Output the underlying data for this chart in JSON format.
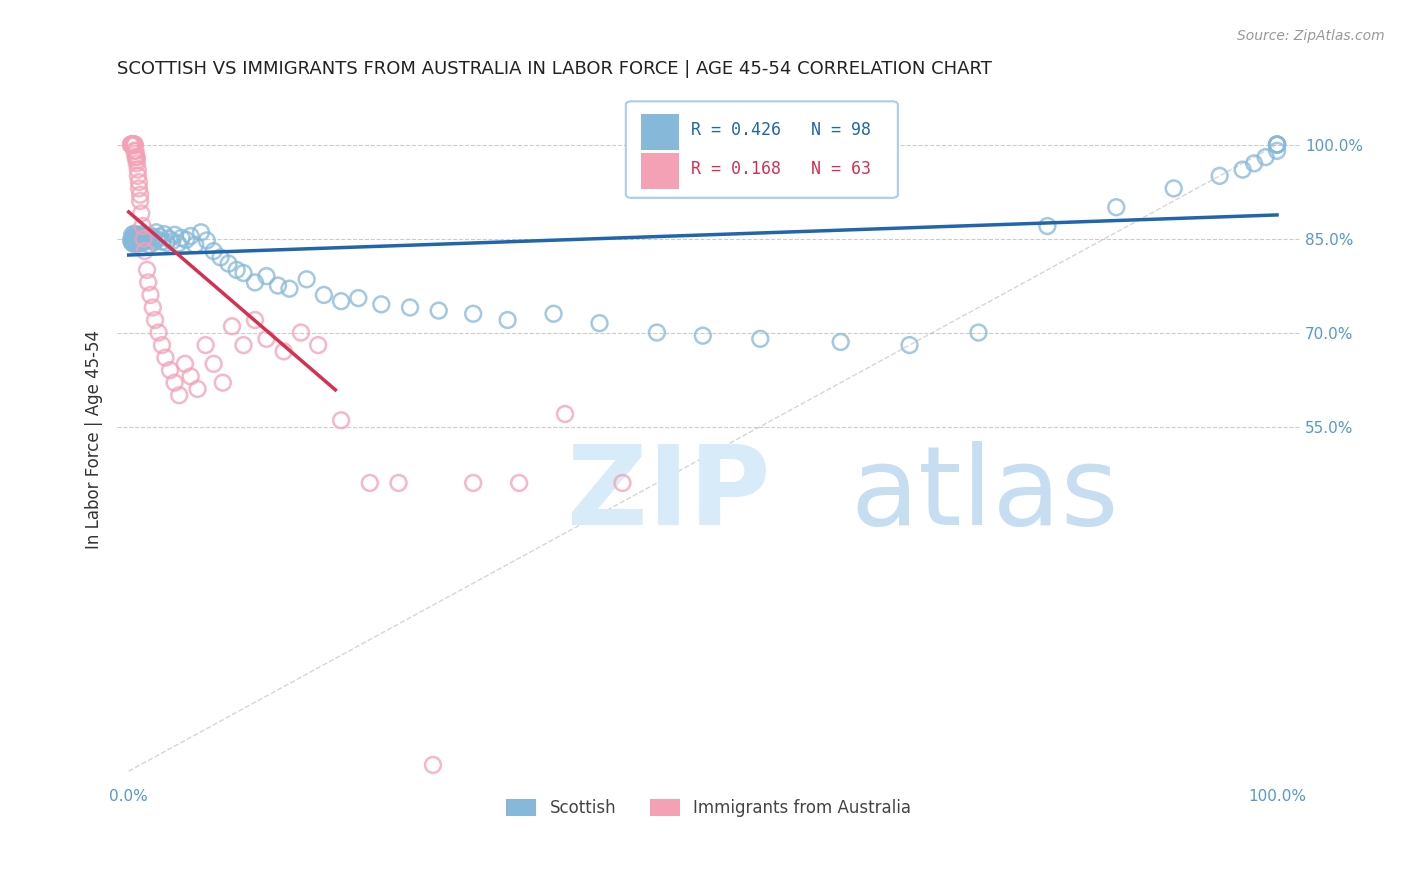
{
  "title": "SCOTTISH VS IMMIGRANTS FROM AUSTRALIA IN LABOR FORCE | AGE 45-54 CORRELATION CHART",
  "source": "Source: ZipAtlas.com",
  "ylabel": "In Labor Force | Age 45-54",
  "scottish_R": 0.426,
  "scottish_N": 98,
  "australia_R": 0.168,
  "australia_N": 63,
  "scottish_color": "#85B8D9",
  "australia_color": "#F4A0B5",
  "trendline_scottish_color": "#2166AC",
  "trendline_australia_color": "#D63050",
  "watermark_color": "#D8EBF8",
  "background_color": "#FFFFFF",
  "title_fontsize": 13,
  "axis_color": "#5599CC",
  "legend_border_color": "#AACCEE",
  "yticks": [
    0.55,
    0.7,
    0.85,
    1.0
  ],
  "ytick_labels": [
    "55.0%",
    "70.0%",
    "85.0%",
    "100.0%"
  ],
  "scottish_x": [
    0.002,
    0.003,
    0.003,
    0.003,
    0.004,
    0.004,
    0.004,
    0.005,
    0.005,
    0.005,
    0.005,
    0.005,
    0.006,
    0.006,
    0.006,
    0.006,
    0.006,
    0.007,
    0.007,
    0.007,
    0.007,
    0.008,
    0.008,
    0.008,
    0.009,
    0.009,
    0.009,
    0.01,
    0.01,
    0.01,
    0.011,
    0.011,
    0.012,
    0.012,
    0.013,
    0.014,
    0.015,
    0.016,
    0.017,
    0.018,
    0.019,
    0.02,
    0.021,
    0.022,
    0.024,
    0.025,
    0.027,
    0.029,
    0.031,
    0.033,
    0.035,
    0.038,
    0.04,
    0.043,
    0.046,
    0.05,
    0.054,
    0.058,
    0.063,
    0.068,
    0.074,
    0.08,
    0.087,
    0.094,
    0.1,
    0.11,
    0.12,
    0.13,
    0.14,
    0.155,
    0.17,
    0.185,
    0.2,
    0.22,
    0.245,
    0.27,
    0.3,
    0.33,
    0.37,
    0.41,
    0.46,
    0.5,
    0.55,
    0.62,
    0.68,
    0.74,
    0.8,
    0.86,
    0.91,
    0.95,
    0.97,
    0.98,
    0.99,
    1.0,
    1.0,
    1.0,
    1.0,
    1.0
  ],
  "scottish_y": [
    0.847,
    0.851,
    0.843,
    0.856,
    0.848,
    0.852,
    0.844,
    0.849,
    0.853,
    0.845,
    0.858,
    0.841,
    0.85,
    0.855,
    0.847,
    0.843,
    0.852,
    0.849,
    0.854,
    0.846,
    0.851,
    0.848,
    0.853,
    0.844,
    0.85,
    0.856,
    0.842,
    0.849,
    0.854,
    0.847,
    0.852,
    0.845,
    0.857,
    0.843,
    0.85,
    0.846,
    0.851,
    0.848,
    0.853,
    0.84,
    0.855,
    0.847,
    0.852,
    0.844,
    0.86,
    0.849,
    0.853,
    0.845,
    0.857,
    0.843,
    0.85,
    0.846,
    0.856,
    0.842,
    0.851,
    0.848,
    0.854,
    0.84,
    0.86,
    0.847,
    0.83,
    0.82,
    0.81,
    0.8,
    0.795,
    0.78,
    0.79,
    0.775,
    0.77,
    0.785,
    0.76,
    0.75,
    0.755,
    0.745,
    0.74,
    0.735,
    0.73,
    0.72,
    0.73,
    0.715,
    0.7,
    0.695,
    0.69,
    0.685,
    0.68,
    0.7,
    0.87,
    0.9,
    0.93,
    0.95,
    0.96,
    0.97,
    0.98,
    0.99,
    1.0,
    1.0,
    1.0,
    1.0
  ],
  "australia_x": [
    0.002,
    0.002,
    0.003,
    0.003,
    0.003,
    0.003,
    0.004,
    0.004,
    0.004,
    0.004,
    0.005,
    0.005,
    0.005,
    0.005,
    0.005,
    0.006,
    0.006,
    0.006,
    0.007,
    0.007,
    0.007,
    0.008,
    0.008,
    0.009,
    0.009,
    0.01,
    0.01,
    0.011,
    0.012,
    0.013,
    0.014,
    0.016,
    0.017,
    0.019,
    0.021,
    0.023,
    0.026,
    0.029,
    0.032,
    0.036,
    0.04,
    0.044,
    0.049,
    0.054,
    0.06,
    0.067,
    0.074,
    0.082,
    0.09,
    0.1,
    0.11,
    0.12,
    0.135,
    0.15,
    0.165,
    0.185,
    0.21,
    0.235,
    0.265,
    0.3,
    0.34,
    0.38,
    0.43
  ],
  "australia_y": [
    1.0,
    1.0,
    1.0,
    1.0,
    1.0,
    1.0,
    1.0,
    1.0,
    1.0,
    1.0,
    1.0,
    1.0,
    1.0,
    1.0,
    0.99,
    0.99,
    0.985,
    0.98,
    0.98,
    0.975,
    0.97,
    0.96,
    0.95,
    0.94,
    0.93,
    0.92,
    0.91,
    0.89,
    0.87,
    0.85,
    0.83,
    0.8,
    0.78,
    0.76,
    0.74,
    0.72,
    0.7,
    0.68,
    0.66,
    0.64,
    0.62,
    0.6,
    0.65,
    0.63,
    0.61,
    0.68,
    0.65,
    0.62,
    0.71,
    0.68,
    0.72,
    0.69,
    0.67,
    0.7,
    0.68,
    0.56,
    0.46,
    0.46,
    0.01,
    0.46,
    0.46,
    0.57,
    0.46
  ]
}
